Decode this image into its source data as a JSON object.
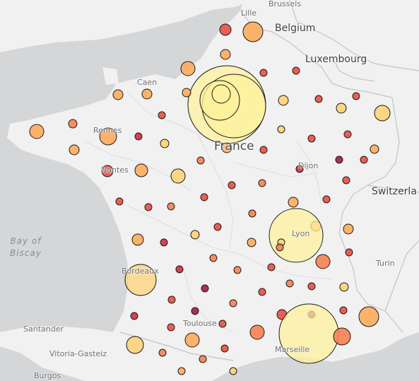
{
  "map": {
    "cities": {
      "lille": "Lille",
      "brussels": "Brussels",
      "caen": "Caen",
      "rennes": "Rennes",
      "nantes": "Nantes",
      "dijon": "Dijon",
      "lyon": "Lyon",
      "turin": "Turin",
      "bordeaux": "Bordeaux",
      "toulouse": "Toulouse",
      "marseille": "Marseille",
      "santander": "Santander",
      "vitoria": "Vitoria-Gasteiz",
      "burgos": "Burgos"
    },
    "countries": {
      "france": "France",
      "belgium": "Belgium",
      "luxembourg": "Luxembourg",
      "switzerland": "Switzerla"
    },
    "sea": {
      "line1": "Bay of",
      "line2": "Biscay"
    },
    "colors": {
      "ocean": "#d4d6d8",
      "land": "#f1f1f1",
      "border": "#c4c4c4",
      "marker_stroke": "#1a1a1a",
      "palette": [
        "#fdf09c",
        "#fdd279",
        "#fcab5b",
        "#f68151",
        "#e94e43",
        "#d12c3c",
        "#a11f3e"
      ]
    }
  }
}
